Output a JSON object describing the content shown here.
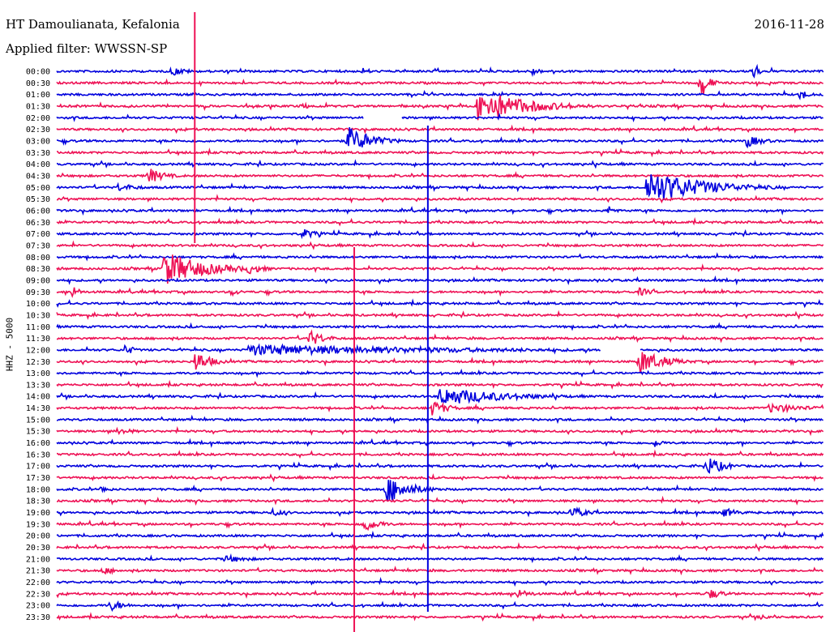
{
  "header": {
    "station": "HT Damoulianata, Kefalonia",
    "filter": "Applied filter: WWSSN-SP",
    "date": "2016-11-28"
  },
  "chart_data": {
    "type": "line",
    "title": "HT Damoulianata, Kefalonia",
    "subtitle": "Applied filter: WWSSN-SP",
    "date": "2016-11-28",
    "ylabel": "HHZ - 5000",
    "row_labels": [
      "00:00",
      "00:30",
      "01:00",
      "01:30",
      "02:00",
      "02:30",
      "03:00",
      "03:30",
      "04:00",
      "04:30",
      "05:00",
      "05:30",
      "06:00",
      "06:30",
      "07:00",
      "07:30",
      "08:00",
      "08:30",
      "09:00",
      "09:30",
      "10:00",
      "10:30",
      "11:00",
      "11:30",
      "12:00",
      "12:30",
      "13:00",
      "13:30",
      "14:00",
      "14:30",
      "15:00",
      "15:30",
      "16:00",
      "16:30",
      "17:00",
      "17:30",
      "18:00",
      "18:30",
      "19:00",
      "19:30",
      "20:00",
      "20:30",
      "21:00",
      "21:30",
      "22:00",
      "22:30",
      "23:00",
      "23:30"
    ],
    "row_minutes": 30,
    "colors": [
      "#0000dd",
      "#ee1155"
    ],
    "events": [
      {
        "row": 0,
        "t": 0.15,
        "amp": 6,
        "dur": 0.02
      },
      {
        "row": 0,
        "t": 0.4,
        "amp": 5,
        "dur": 0.01
      },
      {
        "row": 0,
        "t": 0.62,
        "amp": 6,
        "dur": 0.01
      },
      {
        "row": 0,
        "t": 0.91,
        "amp": 14,
        "dur": 0.005
      },
      {
        "row": 1,
        "t": 0.84,
        "amp": 20,
        "dur": 0.01
      },
      {
        "row": 2,
        "t": 0.97,
        "amp": 8,
        "dur": 0.01
      },
      {
        "row": 3,
        "t": 0.55,
        "amp": 22,
        "dur": 0.06
      },
      {
        "row": 3,
        "t": 0.32,
        "amp": 5,
        "dur": 0.01
      },
      {
        "row": 6,
        "t": 0.38,
        "amp": 18,
        "dur": 0.03
      },
      {
        "row": 6,
        "t": 0.9,
        "amp": 8,
        "dur": 0.02
      },
      {
        "row": 9,
        "t": 0.12,
        "amp": 10,
        "dur": 0.02
      },
      {
        "row": 10,
        "t": 0.08,
        "amp": 5,
        "dur": 0.03
      },
      {
        "row": 10,
        "t": 0.77,
        "amp": 22,
        "dur": 0.07
      },
      {
        "row": 12,
        "t": 0.72,
        "amp": 6,
        "dur": 0.01
      },
      {
        "row": 14,
        "t": 0.32,
        "amp": 7,
        "dur": 0.02
      },
      {
        "row": 17,
        "t": 0.14,
        "amp": 22,
        "dur": 0.05
      },
      {
        "row": 17,
        "t": 0.25,
        "amp": 7,
        "dur": 0.02
      },
      {
        "row": 19,
        "t": 0.02,
        "amp": 8,
        "dur": 0.01
      },
      {
        "row": 19,
        "t": 0.23,
        "amp": 5,
        "dur": 0.01
      },
      {
        "row": 19,
        "t": 0.76,
        "amp": 5,
        "dur": 0.02
      },
      {
        "row": 23,
        "t": 0.33,
        "amp": 10,
        "dur": 0.02
      },
      {
        "row": 24,
        "t": 0.25,
        "amp": 7,
        "dur": 0.28
      },
      {
        "row": 24,
        "t": 0.09,
        "amp": 8,
        "dur": 0.01
      },
      {
        "row": 25,
        "t": 0.18,
        "amp": 14,
        "dur": 0.02
      },
      {
        "row": 25,
        "t": 0.76,
        "amp": 16,
        "dur": 0.03
      },
      {
        "row": 28,
        "t": 0.5,
        "amp": 12,
        "dur": 0.08
      },
      {
        "row": 29,
        "t": 0.49,
        "amp": 10,
        "dur": 0.02
      },
      {
        "row": 29,
        "t": 0.93,
        "amp": 6,
        "dur": 0.05
      },
      {
        "row": 31,
        "t": 0.08,
        "amp": 5,
        "dur": 0.02
      },
      {
        "row": 32,
        "t": 0.78,
        "amp": 6,
        "dur": 0.01
      },
      {
        "row": 34,
        "t": 0.85,
        "amp": 12,
        "dur": 0.02
      },
      {
        "row": 36,
        "t": 0.43,
        "amp": 18,
        "dur": 0.03
      },
      {
        "row": 36,
        "t": 0.06,
        "amp": 5,
        "dur": 0.01
      },
      {
        "row": 38,
        "t": 0.28,
        "amp": 5,
        "dur": 0.02
      },
      {
        "row": 38,
        "t": 0.67,
        "amp": 8,
        "dur": 0.02
      },
      {
        "row": 38,
        "t": 0.87,
        "amp": 6,
        "dur": 0.02
      },
      {
        "row": 39,
        "t": 0.4,
        "amp": 10,
        "dur": 0.02
      },
      {
        "row": 42,
        "t": 0.22,
        "amp": 5,
        "dur": 0.03
      },
      {
        "row": 43,
        "t": 0.06,
        "amp": 5,
        "dur": 0.02
      },
      {
        "row": 45,
        "t": 0.6,
        "amp": 6,
        "dur": 0.02
      },
      {
        "row": 45,
        "t": 0.85,
        "amp": 7,
        "dur": 0.02
      },
      {
        "row": 46,
        "t": 0.07,
        "amp": 7,
        "dur": 0.02
      },
      {
        "row": 47,
        "t": 0.92,
        "amp": 5,
        "dur": 0.01
      }
    ],
    "spikes": [
      {
        "t": 0.18,
        "top": 15,
        "bottom": 300,
        "color_row": 7
      },
      {
        "t": 0.484,
        "top": 155,
        "bottom": 755,
        "color_row": 28
      },
      {
        "t": 0.388,
        "top": 305,
        "bottom": 780,
        "color_row": 39
      }
    ],
    "gaps": [
      {
        "row": 4,
        "from": 0.4,
        "to": 0.45
      },
      {
        "row": 24,
        "from": 0.71,
        "to": 0.76
      }
    ]
  }
}
